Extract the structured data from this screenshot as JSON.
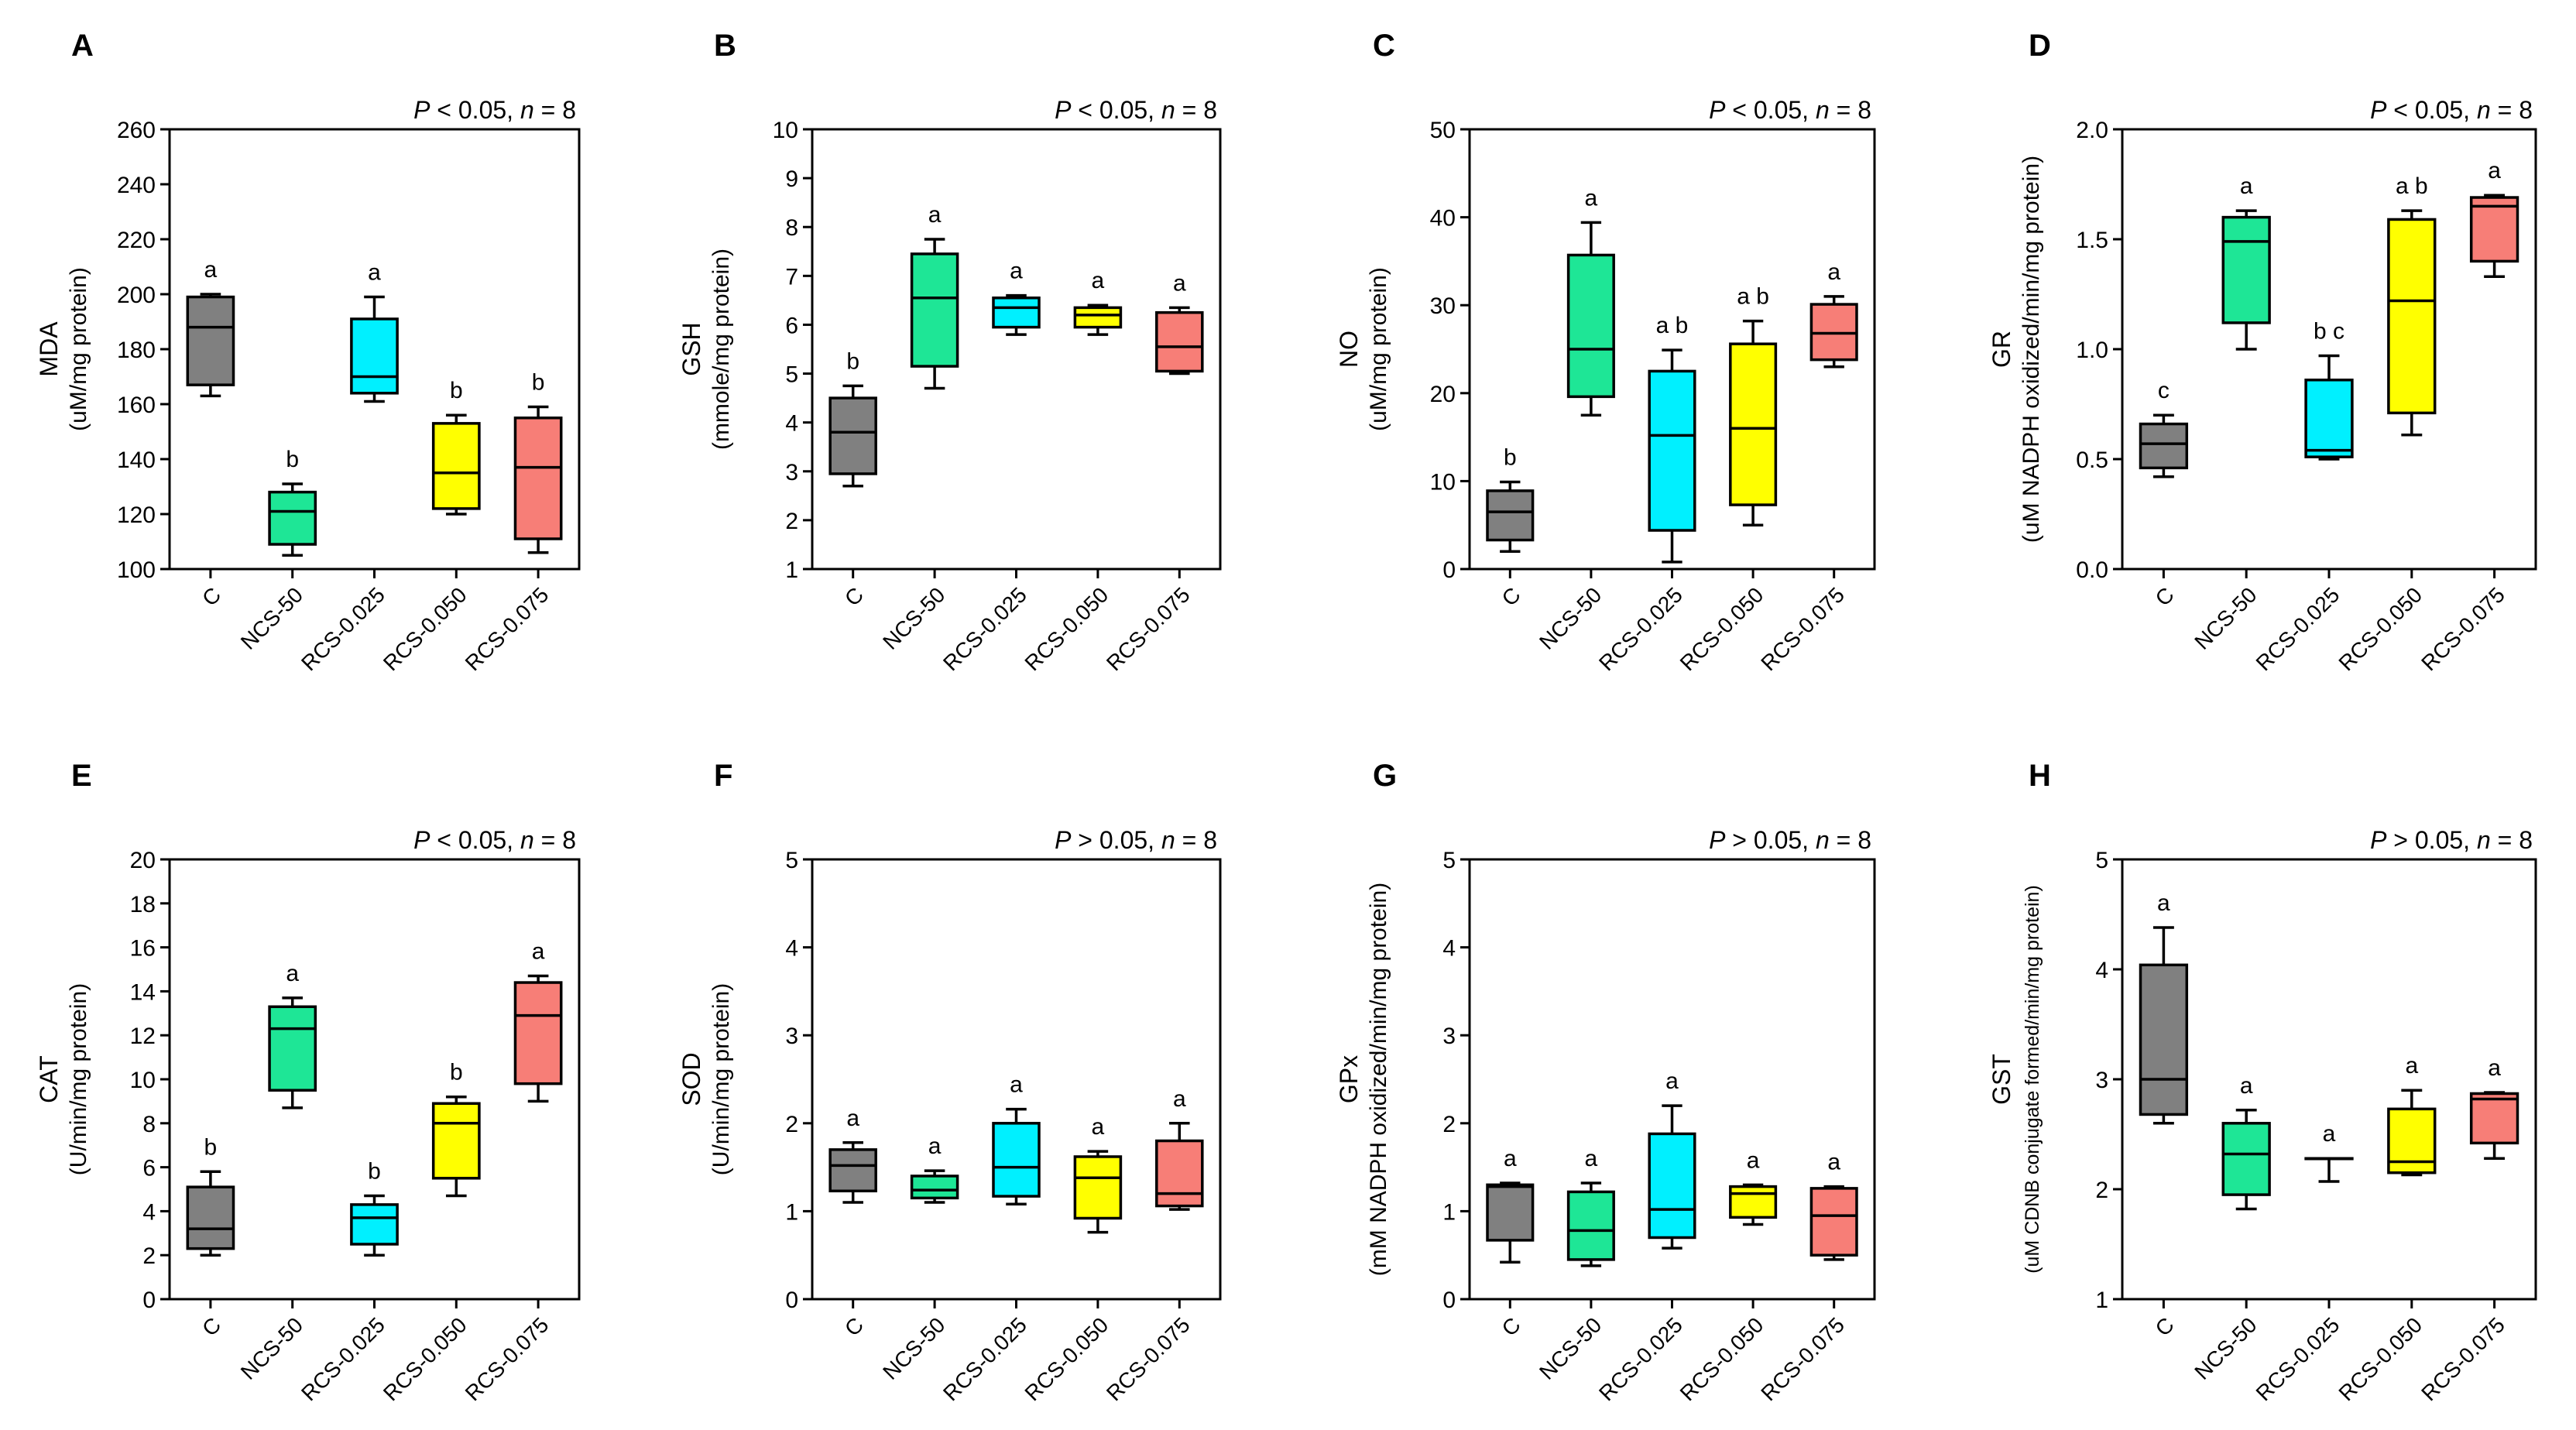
{
  "categories": [
    "C",
    "NCS-50",
    "RCS-0.025",
    "RCS-0.050",
    "RCS-0.075"
  ],
  "colors": {
    "C": "#808080",
    "NCS-50": "#1ee696",
    "RCS-0.025": "#00f0ff",
    "RCS-0.050": "#ffff00",
    "RCS-0.075": "#f77e77",
    "axis": "#000000"
  },
  "chart_data": [
    {
      "type": "box",
      "panel": "A",
      "ylabel": "MDA",
      "yunit": "(uM/mg protein)",
      "ylim": [
        100,
        260
      ],
      "yticks": [
        100,
        120,
        140,
        160,
        180,
        200,
        220,
        240,
        260
      ],
      "stat": {
        "p_op": "< 0.05",
        "n": "8"
      },
      "boxes": [
        {
          "category": "C",
          "min": 163,
          "q1": 167,
          "median": 188,
          "q3": 199,
          "max": 200,
          "letter": "a"
        },
        {
          "category": "NCS-50",
          "min": 105,
          "q1": 109,
          "median": 121,
          "q3": 128,
          "max": 131,
          "letter": "b"
        },
        {
          "category": "RCS-0.025",
          "min": 161,
          "q1": 164,
          "median": 170,
          "q3": 191,
          "max": 199,
          "letter": "a"
        },
        {
          "category": "RCS-0.050",
          "min": 120,
          "q1": 122,
          "median": 135,
          "q3": 153,
          "max": 156,
          "letter": "b"
        },
        {
          "category": "RCS-0.075",
          "min": 106,
          "q1": 111,
          "median": 137,
          "q3": 155,
          "max": 159,
          "letter": "b"
        }
      ]
    },
    {
      "type": "box",
      "panel": "B",
      "ylabel": "GSH",
      "yunit": "(mmole/mg protein)",
      "ylim": [
        1,
        10
      ],
      "yticks": [
        1,
        2,
        3,
        4,
        5,
        6,
        7,
        8,
        9,
        10
      ],
      "stat": {
        "p_op": "< 0.05",
        "n": "8"
      },
      "boxes": [
        {
          "category": "C",
          "min": 2.7,
          "q1": 2.95,
          "median": 3.8,
          "q3": 4.5,
          "max": 4.75,
          "letter": "b"
        },
        {
          "category": "NCS-50",
          "min": 4.7,
          "q1": 5.15,
          "median": 6.55,
          "q3": 7.45,
          "max": 7.75,
          "letter": "a"
        },
        {
          "category": "RCS-0.025",
          "min": 5.8,
          "q1": 5.95,
          "median": 6.35,
          "q3": 6.55,
          "max": 6.6,
          "letter": "a"
        },
        {
          "category": "RCS-0.050",
          "min": 5.8,
          "q1": 5.95,
          "median": 6.2,
          "q3": 6.35,
          "max": 6.4,
          "letter": "a"
        },
        {
          "category": "RCS-0.075",
          "min": 5.0,
          "q1": 5.05,
          "median": 5.55,
          "q3": 6.25,
          "max": 6.35,
          "letter": "a"
        }
      ]
    },
    {
      "type": "box",
      "panel": "C",
      "ylabel": "NO",
      "yunit": "(uM/mg protein)",
      "ylim": [
        0,
        50
      ],
      "yticks": [
        0,
        10,
        20,
        30,
        40,
        50
      ],
      "stat": {
        "p_op": "< 0.05",
        "n": "8"
      },
      "boxes": [
        {
          "category": "C",
          "min": 2,
          "q1": 3.3,
          "median": 6.5,
          "q3": 8.9,
          "max": 9.9,
          "letter": "b"
        },
        {
          "category": "NCS-50",
          "min": 17.5,
          "q1": 19.6,
          "median": 25,
          "q3": 35.7,
          "max": 39.4,
          "letter": "a"
        },
        {
          "category": "RCS-0.025",
          "min": 0.8,
          "q1": 4.4,
          "median": 15.2,
          "q3": 22.5,
          "max": 24.9,
          "letter": "a b"
        },
        {
          "category": "RCS-0.050",
          "min": 5,
          "q1": 7.3,
          "median": 16,
          "q3": 25.6,
          "max": 28.2,
          "letter": "a b"
        },
        {
          "category": "RCS-0.075",
          "min": 23,
          "q1": 23.8,
          "median": 26.8,
          "q3": 30.1,
          "max": 31,
          "letter": "a"
        }
      ]
    },
    {
      "type": "box",
      "panel": "D",
      "ylabel": "GR",
      "yunit": "(uM NADPH oxidized/min/mg protein)",
      "ylim": [
        0,
        2
      ],
      "yticks": [
        0,
        0.5,
        1,
        1.5,
        2
      ],
      "yticklabels": [
        "0.0",
        "0.5",
        "1.0",
        "1.5",
        "2.0"
      ],
      "stat": {
        "p_op": "< 0.05",
        "n": "8"
      },
      "boxes": [
        {
          "category": "C",
          "min": 0.42,
          "q1": 0.46,
          "median": 0.57,
          "q3": 0.66,
          "max": 0.7,
          "letter": "c"
        },
        {
          "category": "NCS-50",
          "min": 1.0,
          "q1": 1.12,
          "median": 1.49,
          "q3": 1.6,
          "max": 1.63,
          "letter": "a"
        },
        {
          "category": "RCS-0.025",
          "min": 0.5,
          "q1": 0.51,
          "median": 0.54,
          "q3": 0.86,
          "max": 0.97,
          "letter": "b c"
        },
        {
          "category": "RCS-0.050",
          "min": 0.61,
          "q1": 0.71,
          "median": 1.22,
          "q3": 1.59,
          "max": 1.63,
          "letter": "a b"
        },
        {
          "category": "RCS-0.075",
          "min": 1.33,
          "q1": 1.4,
          "median": 1.65,
          "q3": 1.69,
          "max": 1.7,
          "letter": "a"
        }
      ]
    },
    {
      "type": "box",
      "panel": "E",
      "ylabel": "CAT",
      "yunit": "(U/min/mg protein)",
      "ylim": [
        0,
        20
      ],
      "yticks": [
        0,
        2,
        4,
        6,
        8,
        10,
        12,
        14,
        16,
        18,
        20
      ],
      "stat": {
        "p_op": "< 0.05",
        "n": "8"
      },
      "boxes": [
        {
          "category": "C",
          "min": 2.0,
          "q1": 2.3,
          "median": 3.2,
          "q3": 5.1,
          "max": 5.8,
          "letter": "b"
        },
        {
          "category": "NCS-50",
          "min": 8.7,
          "q1": 9.5,
          "median": 12.3,
          "q3": 13.3,
          "max": 13.7,
          "letter": "a"
        },
        {
          "category": "RCS-0.025",
          "min": 2.0,
          "q1": 2.5,
          "median": 3.7,
          "q3": 4.3,
          "max": 4.7,
          "letter": "b"
        },
        {
          "category": "RCS-0.050",
          "min": 4.7,
          "q1": 5.5,
          "median": 8.0,
          "q3": 8.9,
          "max": 9.2,
          "letter": "b"
        },
        {
          "category": "RCS-0.075",
          "min": 9.0,
          "q1": 9.8,
          "median": 12.9,
          "q3": 14.4,
          "max": 14.7,
          "letter": "a"
        }
      ]
    },
    {
      "type": "box",
      "panel": "F",
      "ylabel": "SOD",
      "yunit": "(U/min/mg protein)",
      "ylim": [
        0,
        5
      ],
      "yticks": [
        0,
        1,
        2,
        3,
        4,
        5
      ],
      "stat": {
        "p_op": "> 0.05",
        "n": "8"
      },
      "boxes": [
        {
          "category": "C",
          "min": 1.1,
          "q1": 1.23,
          "median": 1.52,
          "q3": 1.7,
          "max": 1.78,
          "letter": "a"
        },
        {
          "category": "NCS-50",
          "min": 1.1,
          "q1": 1.15,
          "median": 1.24,
          "q3": 1.4,
          "max": 1.46,
          "letter": "a"
        },
        {
          "category": "RCS-0.025",
          "min": 1.08,
          "q1": 1.17,
          "median": 1.5,
          "q3": 2.0,
          "max": 2.16,
          "letter": "a"
        },
        {
          "category": "RCS-0.050",
          "min": 0.76,
          "q1": 0.92,
          "median": 1.38,
          "q3": 1.62,
          "max": 1.68,
          "letter": "a"
        },
        {
          "category": "RCS-0.075",
          "min": 1.02,
          "q1": 1.06,
          "median": 1.2,
          "q3": 1.8,
          "max": 2.0,
          "letter": "a"
        }
      ]
    },
    {
      "type": "box",
      "panel": "G",
      "ylabel": "GPx",
      "yunit": "(mM NADPH oxidized/min/mg protein)",
      "ylim": [
        0,
        5
      ],
      "yticks": [
        0,
        1,
        2,
        3,
        4,
        5
      ],
      "stat": {
        "p_op": "> 0.05",
        "n": "8"
      },
      "boxes": [
        {
          "category": "C",
          "min": 0.42,
          "q1": 0.67,
          "median": 1.28,
          "q3": 1.3,
          "max": 1.32,
          "letter": "a"
        },
        {
          "category": "NCS-50",
          "min": 0.38,
          "q1": 0.45,
          "median": 0.78,
          "q3": 1.22,
          "max": 1.32,
          "letter": "a"
        },
        {
          "category": "RCS-0.025",
          "min": 0.58,
          "q1": 0.7,
          "median": 1.02,
          "q3": 1.88,
          "max": 2.2,
          "letter": "a"
        },
        {
          "category": "RCS-0.050",
          "min": 0.85,
          "q1": 0.93,
          "median": 1.2,
          "q3": 1.28,
          "max": 1.3,
          "letter": "a"
        },
        {
          "category": "RCS-0.075",
          "min": 0.45,
          "q1": 0.5,
          "median": 0.95,
          "q3": 1.26,
          "max": 1.28,
          "letter": "a"
        }
      ]
    },
    {
      "type": "box",
      "panel": "H",
      "ylabel": "GST",
      "yunit": "(uM CDNB conjugate formed/min/mg protein)",
      "ylim": [
        1,
        5
      ],
      "yticks": [
        1,
        2,
        3,
        4,
        5
      ],
      "stat": {
        "p_op": "> 0.05",
        "n": "8"
      },
      "boxes": [
        {
          "category": "C",
          "min": 2.6,
          "q1": 2.68,
          "median": 3.0,
          "q3": 4.04,
          "max": 4.38,
          "letter": "a"
        },
        {
          "category": "NCS-50",
          "min": 1.82,
          "q1": 1.95,
          "median": 2.32,
          "q3": 2.6,
          "max": 2.72,
          "letter": "a"
        },
        {
          "category": "RCS-0.025",
          "min": 2.07,
          "q1": 2.28,
          "median": 2.28,
          "q3": 2.28,
          "max": 2.28,
          "letter": "a"
        },
        {
          "category": "RCS-0.050",
          "min": 2.13,
          "q1": 2.15,
          "median": 2.25,
          "q3": 2.73,
          "max": 2.9,
          "letter": "a"
        },
        {
          "category": "RCS-0.075",
          "min": 2.28,
          "q1": 2.42,
          "median": 2.82,
          "q3": 2.87,
          "max": 2.88,
          "letter": "a"
        }
      ]
    }
  ]
}
